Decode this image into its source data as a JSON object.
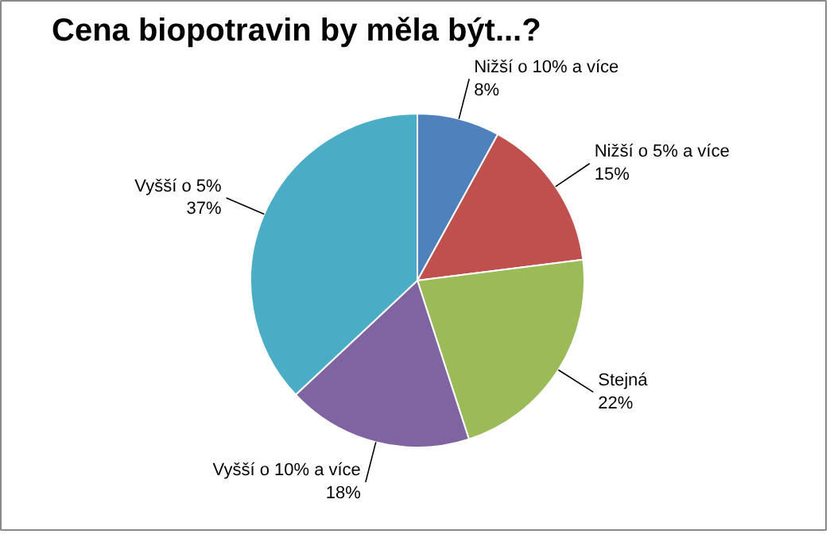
{
  "chart_data": {
    "type": "pie",
    "title": "Cena biopotravin by měla být...?",
    "categories": [
      "Nižší o 10% a více",
      "Nižší o 5% a více",
      "Stejná",
      "Vyšší o 10% a více",
      "Vyšší o 5%"
    ],
    "values": [
      8,
      15,
      22,
      18,
      37
    ],
    "value_labels": [
      "8%",
      "15%",
      "22%",
      "18%",
      "37%"
    ],
    "colors": [
      "#4f81bd",
      "#c0504d",
      "#9bbb59",
      "#8064a2",
      "#4bacc6"
    ]
  }
}
